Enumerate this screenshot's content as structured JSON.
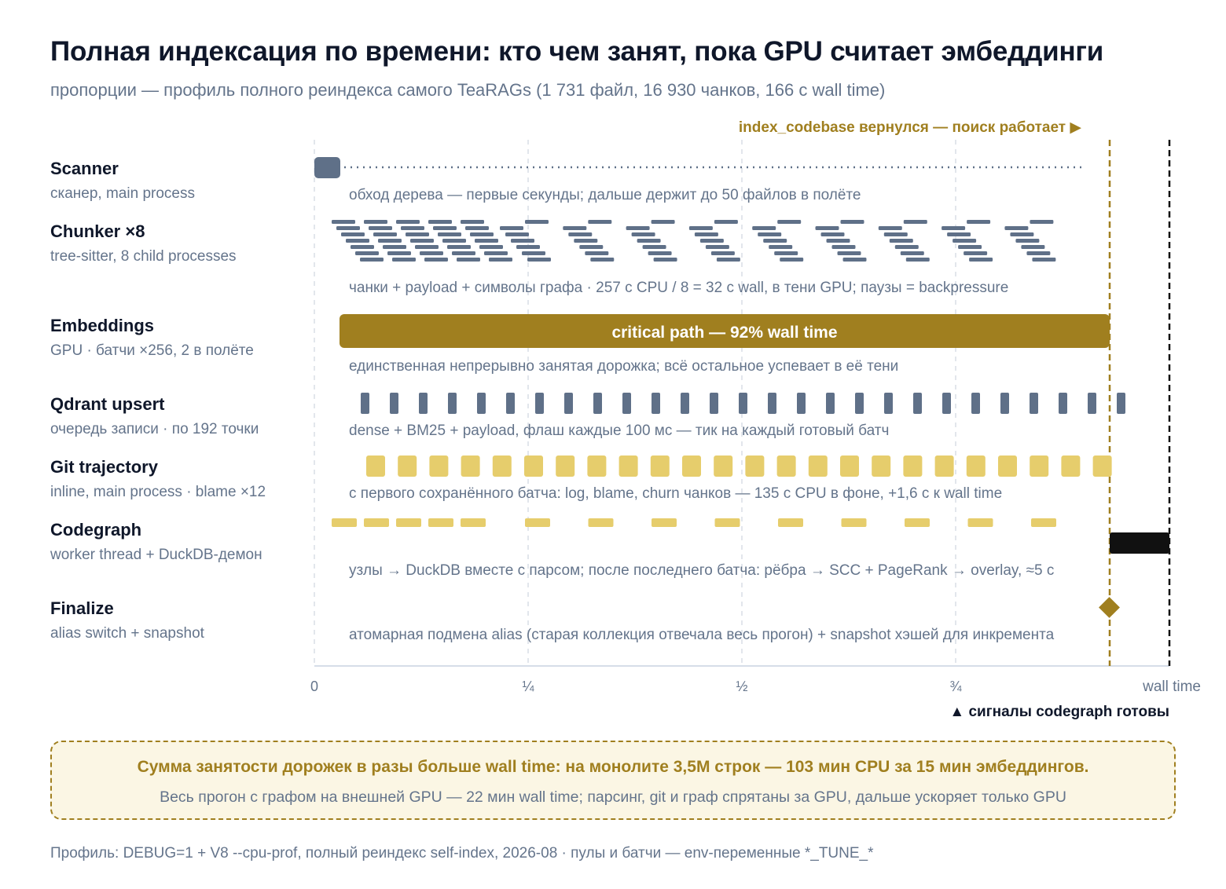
{
  "title": "Полная индексация по времени: кто чем занят, пока GPU считает эмбеддинги",
  "subtitle": "пропорции — профиль полного реиндекса самого TeaRAGs (1 731 файл, 16 930 чанков, 166 с wall time)",
  "colors": {
    "gold": "#a07f1f",
    "light_gold": "#e6cd6c",
    "slate": "#64748b",
    "lane_block": "#5f7088",
    "black": "#111111",
    "grid": "#d9dee6",
    "callout_bg": "#fbf6e4"
  },
  "markers": {
    "search_ready": {
      "label": "index_codebase вернулся — поиск работает ▶",
      "position_fraction": 0.93
    },
    "codegraph_ready": {
      "label": "▲ сигналы codegraph готовы",
      "position_fraction": 1.0
    }
  },
  "axis": {
    "ticks": [
      {
        "label": "0",
        "fraction": 0
      },
      {
        "label": "¼",
        "fraction": 0.25
      },
      {
        "label": "½",
        "fraction": 0.5
      },
      {
        "label": "¾",
        "fraction": 0.75
      }
    ],
    "end_label": "wall time"
  },
  "lanes": [
    {
      "name": "Scanner",
      "sub": "сканер, main process",
      "note": "обход дерева — первые секунды; дальше держит до 50 файлов в полёте"
    },
    {
      "name": "Chunker ×8",
      "sub": "tree-sitter, 8 child processes",
      "note": "чанки + payload + символы графа · 257 с CPU / 8 = 32 с wall, в тени GPU; паузы = backpressure"
    },
    {
      "name": "Embeddings",
      "sub": "GPU · батчи ×256, 2 в полёте",
      "note": "единственная непрерывно занятая дорожка; всё остальное успевает в её тени",
      "bar_label": "critical path — 92% wall time"
    },
    {
      "name": "Qdrant upsert",
      "sub": "очередь записи · по 192 точки",
      "note": "dense + BM25 + payload, флаш каждые 100 мс — тик на каждый готовый батч"
    },
    {
      "name": "Git trajectory",
      "sub": "inline, main process · blame ×12",
      "note": "с первого сохранённого батча: log, blame, churn чанков — 135 с CPU в фоне, +1,6 с к wall time"
    },
    {
      "name": "Codegraph",
      "sub": "worker thread + DuckDB-демон",
      "note": "узлы → DuckDB вместе с парсом; после последнего батча: рёбра → SCC + PageRank → overlay, ≈5 с"
    },
    {
      "name": "Finalize",
      "sub": "alias switch + snapshot",
      "note": "атомарная подмена alias (старая коллекция отвечала весь прогон) + snapshot хэшей для инкремента"
    }
  ],
  "callout": {
    "main": "Сумма занятости дорожек в разы больше wall time: на монолите 3,5M строк — 103 мин CPU за 15 мин эмбеддингов.",
    "sub": "Весь прогон с графом на внешней GPU — 22 мин wall time; парсинг, git и граф спрятаны за GPU, дальше ускоряет только GPU"
  },
  "footer": "Профиль: DEBUG=1 + V8 --cpu-prof, полный реиндекс self-index, 2026-08 · пулы и батчи — env-переменные *_TUNE_*"
}
